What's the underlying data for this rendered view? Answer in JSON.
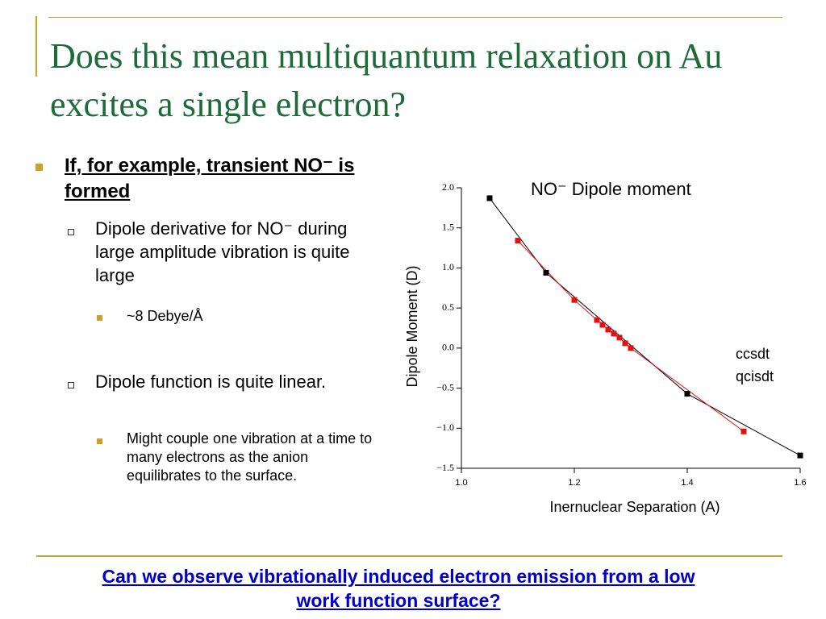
{
  "title": "Does this mean multiquantum relaxation on Au excites a single electron?",
  "bullets": [
    {
      "text": "If, for example, transient NO⁻ is formed",
      "sub": [
        {
          "text": "Dipole derivative for NO⁻ during large amplitude vibration is quite large",
          "sub": [
            {
              "text": "~8 Debye/Å"
            }
          ]
        },
        {
          "text": "Dipole function is quite linear.",
          "sub": [
            {
              "text": "Might couple one vibration at a time to many electrons as the anion equilibrates to the surface."
            }
          ]
        }
      ]
    }
  ],
  "footer": "Can we observe vibrationally induced electron emission from a low work function surface?",
  "chart_data": {
    "type": "scatter",
    "title": "NO⁻ Dipole moment",
    "x_label": "Inernuclear Separation (A)",
    "y_label": "Dipole Moment (D)",
    "xlim": [
      1.0,
      1.6
    ],
    "xticks": [
      {
        "value": 1.0,
        "label": "1.0"
      },
      {
        "value": 1.2,
        "label": "1.2"
      },
      {
        "value": 1.4,
        "label": "1.4"
      },
      {
        "value": 1.6,
        "label": "1.6"
      }
    ],
    "ylim": [
      -1.5,
      2.0
    ],
    "yticks": [
      {
        "value": -1.5,
        "label": "−1.5"
      },
      {
        "value": -1.0,
        "label": "−1.0"
      },
      {
        "value": -0.5,
        "label": "−0.5"
      },
      {
        "value": 0.0,
        "label": "0.0"
      },
      {
        "value": 0.5,
        "label": "0.5"
      },
      {
        "value": 1.0,
        "label": "1.0"
      },
      {
        "value": 1.5,
        "label": "1.5"
      },
      {
        "value": 2.0,
        "label": "2.0"
      }
    ],
    "series": [
      {
        "name": "ccsdt",
        "color": "#000000",
        "x": [
          1.05,
          1.15,
          1.4,
          1.6
        ],
        "values": [
          1.87,
          0.94,
          -0.57,
          -1.34
        ]
      },
      {
        "name": "qcisdt",
        "color": "#e31010",
        "x": [
          1.1,
          1.2,
          1.24,
          1.25,
          1.26,
          1.27,
          1.28,
          1.29,
          1.3,
          1.5
        ],
        "values": [
          1.34,
          0.6,
          0.35,
          0.29,
          0.23,
          0.18,
          0.13,
          0.06,
          0.0,
          -1.04
        ]
      }
    ]
  }
}
